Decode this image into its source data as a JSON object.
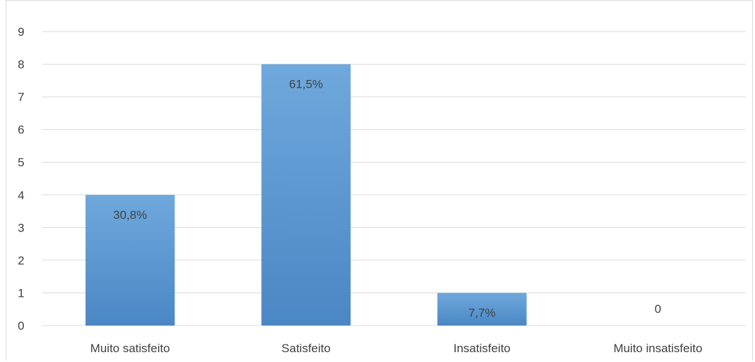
{
  "chart_data": {
    "type": "bar",
    "categories": [
      "Muito satisfeito",
      "Satisfeito",
      "Insatisfeito",
      "Muito insatisfeito"
    ],
    "values": [
      4,
      8,
      1,
      0
    ],
    "data_labels": [
      "30,8%",
      "61,5%",
      "7,7%",
      "0"
    ],
    "y_ticks": [
      "0",
      "1",
      "2",
      "3",
      "4",
      "5",
      "6",
      "7",
      "8",
      "9"
    ],
    "ylim": [
      0,
      9
    ],
    "grid": true,
    "bar_color": "#5B9BD5",
    "bar_color_top": "#6FA8DC",
    "bar_color_bottom": "#4A87C4"
  }
}
